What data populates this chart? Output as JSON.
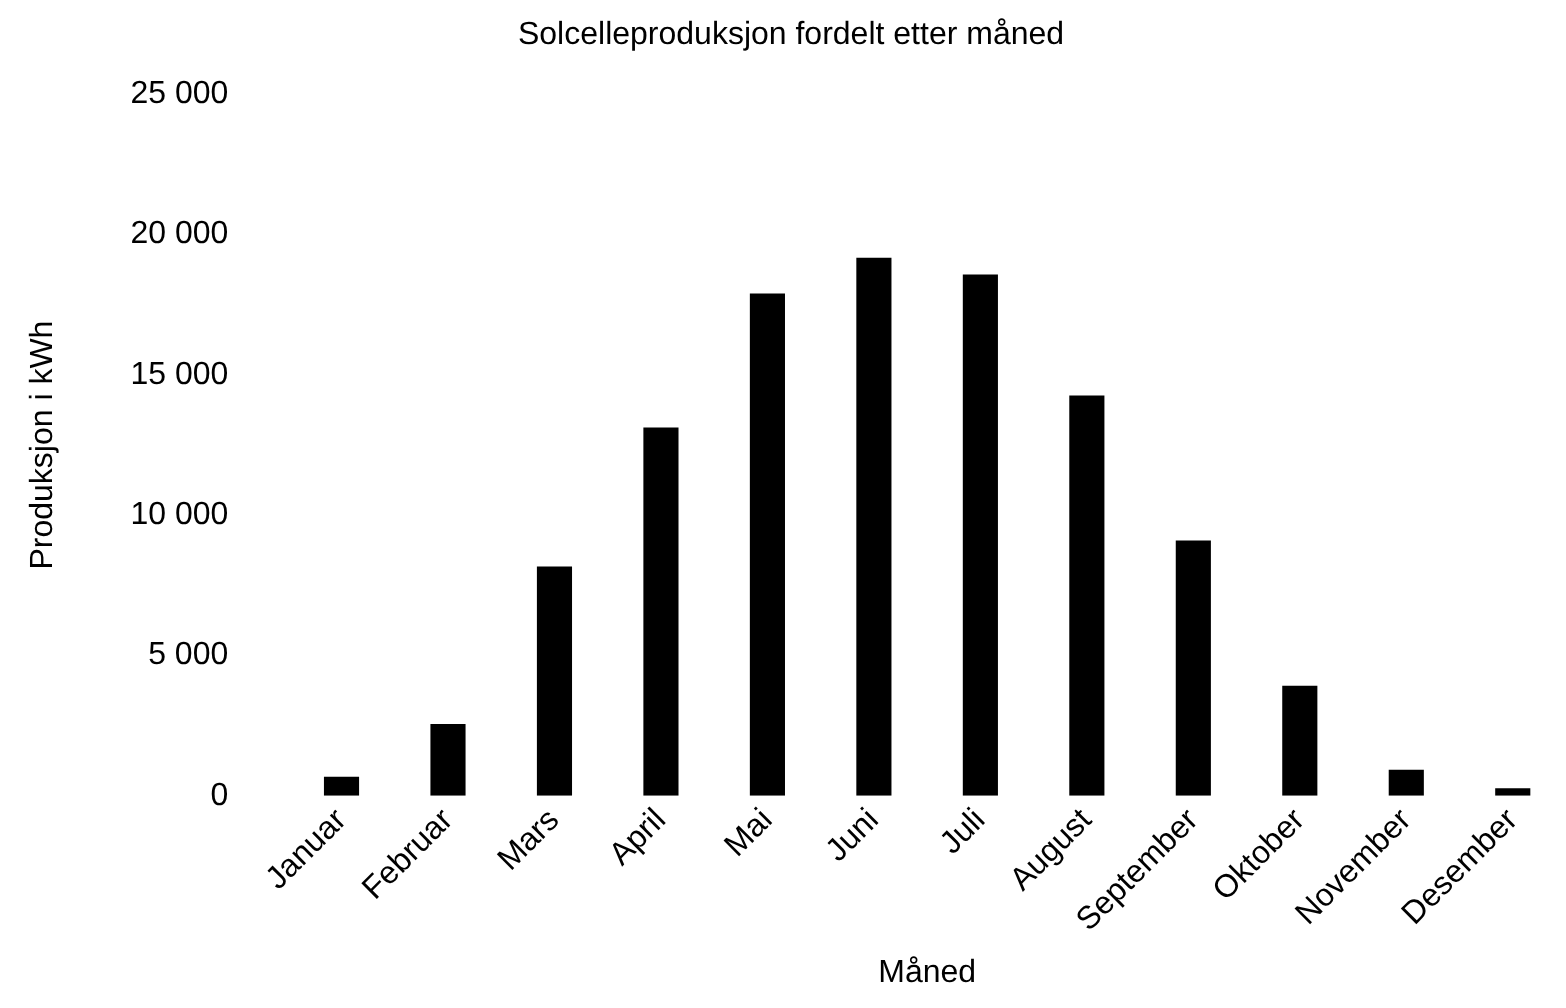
{
  "chart_data": {
    "type": "bar",
    "title": "Solcelleproduksjon fordelt etter måned",
    "xlabel": "Måned",
    "ylabel": "Produksjon i kWh",
    "categories": [
      "Januar",
      "Februar",
      "Mars",
      "April",
      "Mai",
      "Juni",
      "Juli",
      "August",
      "September",
      "Oktober",
      "November",
      "Desember"
    ],
    "values": [
      680,
      2560,
      8170,
      13130,
      17900,
      19180,
      18580,
      14270,
      9100,
      3920,
      930,
      270
    ],
    "color": "#000000",
    "ylim": [
      0,
      25000
    ],
    "yticks": [
      {
        "value": 0,
        "label": "0"
      },
      {
        "value": 5000,
        "label": "5 000"
      },
      {
        "value": 10000,
        "label": "10 000"
      },
      {
        "value": 15000,
        "label": "15 000"
      },
      {
        "value": 20000,
        "label": "20 000"
      },
      {
        "value": 25000,
        "label": "25 000"
      }
    ],
    "grid": false,
    "legend": false
  }
}
